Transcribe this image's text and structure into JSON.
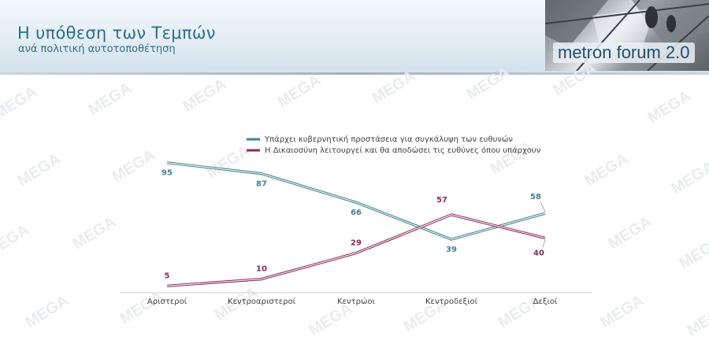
{
  "header": {
    "title": "Η υπόθεση των Τεμπών",
    "subtitle": "ανά πολιτική αυτοτοποθέτηση",
    "logo_text": "metron forum 2.0"
  },
  "watermark": "MEGA",
  "colors": {
    "series1": "#3f8196",
    "series2": "#8b2a55",
    "title": "#2a6f8c"
  },
  "chart_data": {
    "type": "line",
    "categories": [
      "Αριστεροί",
      "Κεντροαριστεροί",
      "Κεντρώοι",
      "Κεντροδεξιοί",
      "Δεξιοί"
    ],
    "series": [
      {
        "name": "Υπάρχει κυβερνητική προστάσεια για συγκάλυψη των ευθυνών",
        "values": [
          95,
          87,
          66,
          39,
          58
        ],
        "color": "#3f8196"
      },
      {
        "name": "Η Δικαιοσύνη λειτουργεί και θα αποδώσει τις ευθύνες όπου υπάρχουν",
        "values": [
          5,
          10,
          29,
          57,
          40
        ],
        "color": "#8b2a55"
      }
    ],
    "ylim": [
      0,
      100
    ],
    "legend": "top-center",
    "grid": false
  }
}
